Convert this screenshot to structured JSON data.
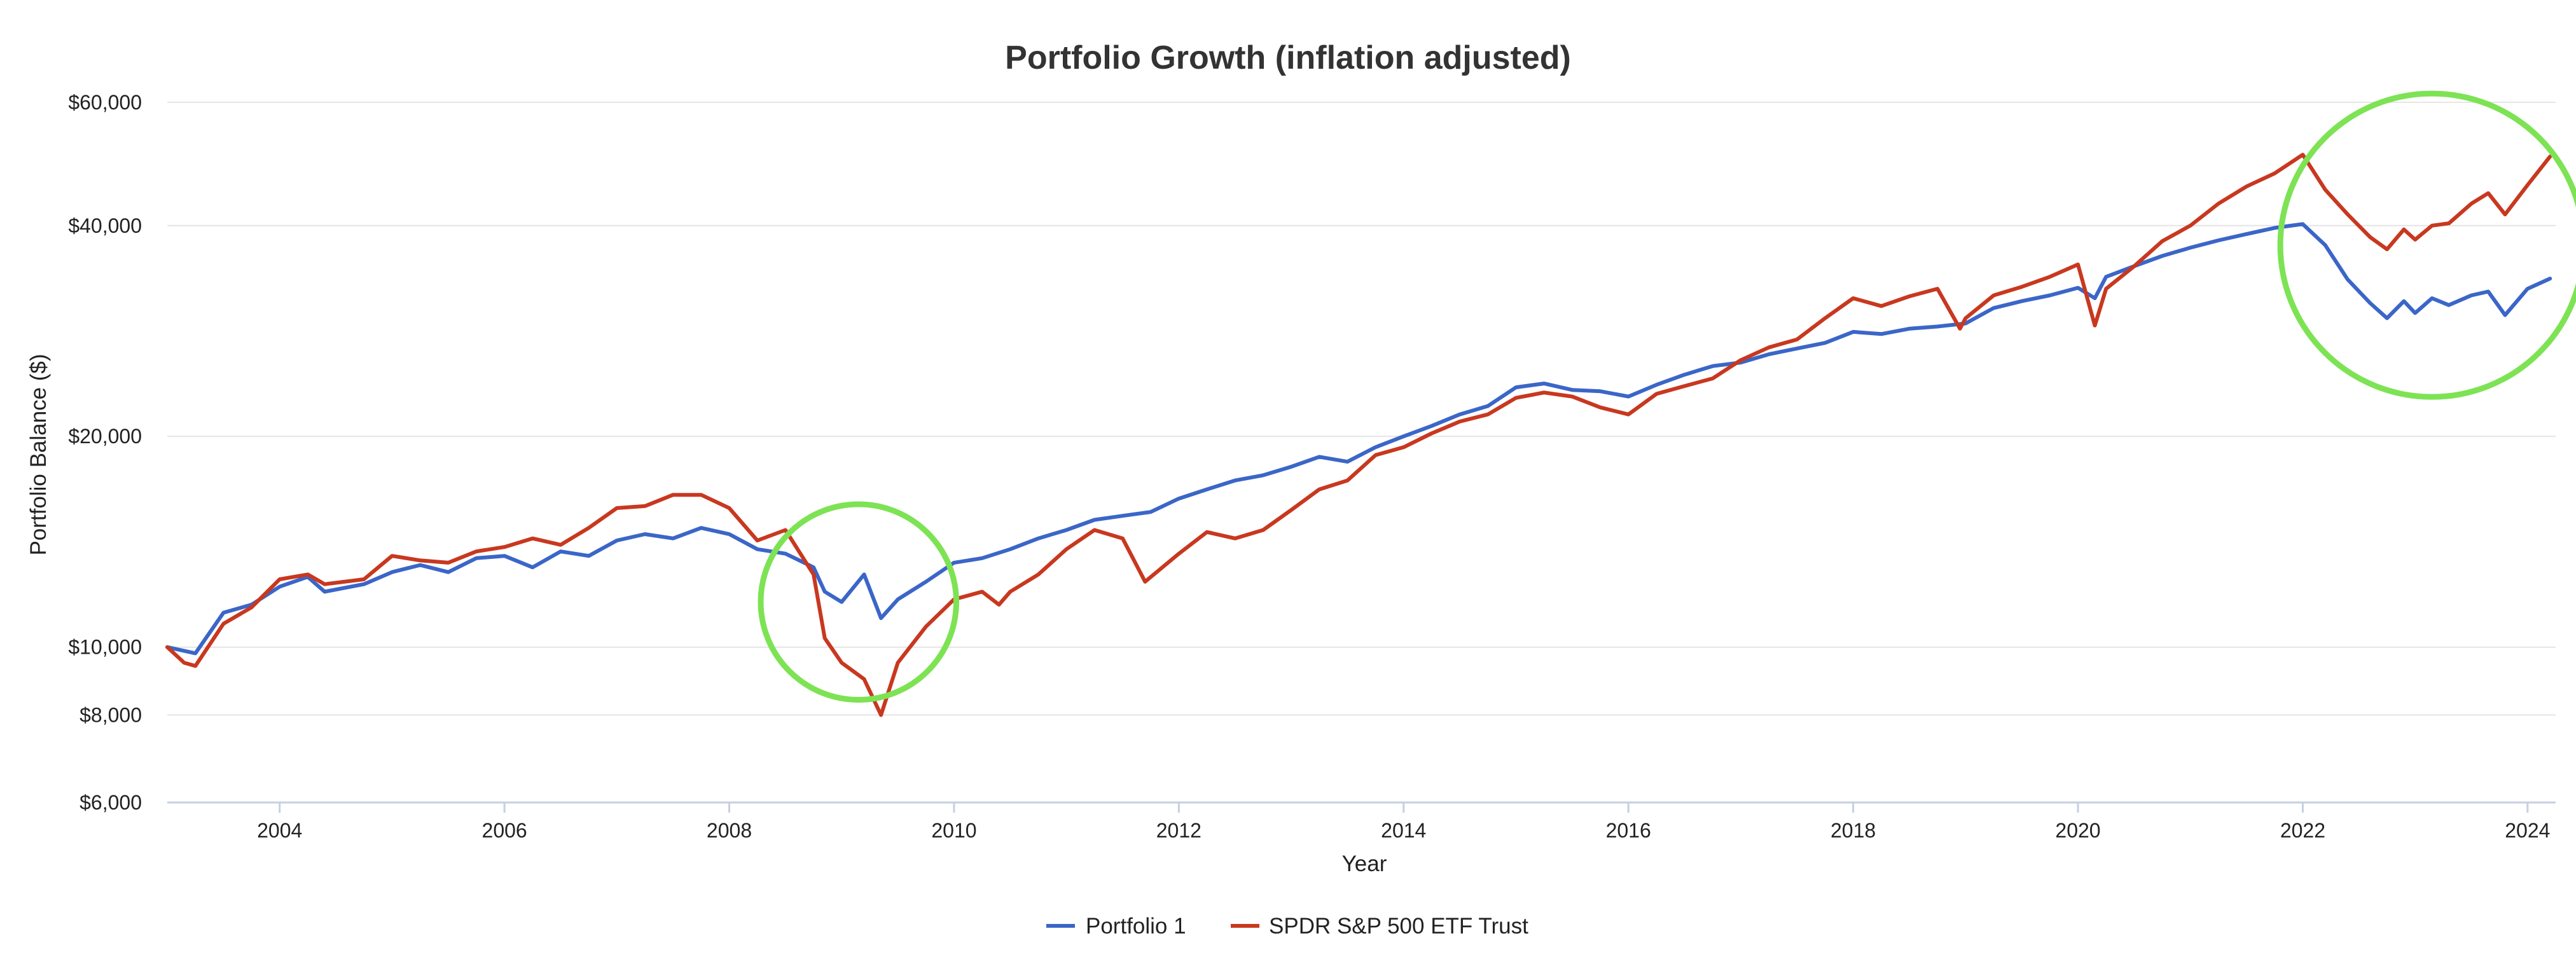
{
  "chart_data": {
    "type": "line",
    "title": "Portfolio Growth (inflation adjusted)",
    "xlabel": "Year",
    "ylabel": "Portfolio Balance ($)",
    "y_scale": "log",
    "ylim": [
      6000,
      64000
    ],
    "xlim": [
      2003.0,
      2024.25
    ],
    "y_ticks": [
      {
        "value": 6000,
        "label": "$6,000"
      },
      {
        "value": 8000,
        "label": "$8,000"
      },
      {
        "value": 10000,
        "label": "$10,000"
      },
      {
        "value": 20000,
        "label": "$20,000"
      },
      {
        "value": 40000,
        "label": "$40,000"
      },
      {
        "value": 60000,
        "label": "$60,000"
      }
    ],
    "x_ticks": [
      {
        "value": 2004,
        "label": "2004"
      },
      {
        "value": 2006,
        "label": "2006"
      },
      {
        "value": 2008,
        "label": "2008"
      },
      {
        "value": 2010,
        "label": "2010"
      },
      {
        "value": 2012,
        "label": "2012"
      },
      {
        "value": 2014,
        "label": "2014"
      },
      {
        "value": 2016,
        "label": "2016"
      },
      {
        "value": 2018,
        "label": "2018"
      },
      {
        "value": 2020,
        "label": "2020"
      },
      {
        "value": 2022,
        "label": "2022"
      },
      {
        "value": 2024,
        "label": "2024"
      }
    ],
    "grid": true,
    "legend_position": "bottom-center",
    "series": [
      {
        "name": "Portfolio 1",
        "color": "#3b66c8",
        "points": [
          [
            2003.0,
            10000
          ],
          [
            2003.25,
            9800
          ],
          [
            2003.5,
            11200
          ],
          [
            2003.75,
            11500
          ],
          [
            2004.0,
            12200
          ],
          [
            2004.25,
            12600
          ],
          [
            2004.4,
            12000
          ],
          [
            2004.75,
            12300
          ],
          [
            2005.0,
            12800
          ],
          [
            2005.25,
            13100
          ],
          [
            2005.5,
            12800
          ],
          [
            2005.75,
            13400
          ],
          [
            2006.0,
            13500
          ],
          [
            2006.25,
            13000
          ],
          [
            2006.5,
            13700
          ],
          [
            2006.75,
            13500
          ],
          [
            2007.0,
            14200
          ],
          [
            2007.25,
            14500
          ],
          [
            2007.5,
            14300
          ],
          [
            2007.75,
            14800
          ],
          [
            2008.0,
            14500
          ],
          [
            2008.25,
            13800
          ],
          [
            2008.5,
            13600
          ],
          [
            2008.75,
            13000
          ],
          [
            2008.85,
            12000
          ],
          [
            2009.0,
            11600
          ],
          [
            2009.2,
            12700
          ],
          [
            2009.35,
            11000
          ],
          [
            2009.5,
            11700
          ],
          [
            2009.75,
            12400
          ],
          [
            2010.0,
            13200
          ],
          [
            2010.25,
            13400
          ],
          [
            2010.5,
            13800
          ],
          [
            2010.75,
            14300
          ],
          [
            2011.0,
            14700
          ],
          [
            2011.25,
            15200
          ],
          [
            2011.5,
            15400
          ],
          [
            2011.75,
            15600
          ],
          [
            2012.0,
            16300
          ],
          [
            2012.25,
            16800
          ],
          [
            2012.5,
            17300
          ],
          [
            2012.75,
            17600
          ],
          [
            2013.0,
            18100
          ],
          [
            2013.25,
            18700
          ],
          [
            2013.5,
            18400
          ],
          [
            2013.75,
            19300
          ],
          [
            2014.0,
            20000
          ],
          [
            2014.25,
            20700
          ],
          [
            2014.5,
            21500
          ],
          [
            2014.75,
            22100
          ],
          [
            2015.0,
            23500
          ],
          [
            2015.25,
            23800
          ],
          [
            2015.5,
            23300
          ],
          [
            2015.75,
            23200
          ],
          [
            2016.0,
            22800
          ],
          [
            2016.25,
            23700
          ],
          [
            2016.5,
            24500
          ],
          [
            2016.75,
            25200
          ],
          [
            2017.0,
            25500
          ],
          [
            2017.25,
            26200
          ],
          [
            2017.5,
            26700
          ],
          [
            2017.75,
            27200
          ],
          [
            2018.0,
            28200
          ],
          [
            2018.25,
            28000
          ],
          [
            2018.5,
            28500
          ],
          [
            2018.75,
            28700
          ],
          [
            2019.0,
            29000
          ],
          [
            2019.25,
            30500
          ],
          [
            2019.5,
            31200
          ],
          [
            2019.75,
            31800
          ],
          [
            2020.0,
            32600
          ],
          [
            2020.15,
            31500
          ],
          [
            2020.25,
            33800
          ],
          [
            2020.5,
            35000
          ],
          [
            2020.75,
            36200
          ],
          [
            2021.0,
            37200
          ],
          [
            2021.25,
            38100
          ],
          [
            2021.5,
            38900
          ],
          [
            2021.75,
            39700
          ],
          [
            2022.0,
            40200
          ],
          [
            2022.2,
            37500
          ],
          [
            2022.4,
            33500
          ],
          [
            2022.6,
            31000
          ],
          [
            2022.75,
            29500
          ],
          [
            2022.9,
            31200
          ],
          [
            2023.0,
            30000
          ],
          [
            2023.15,
            31500
          ],
          [
            2023.3,
            30800
          ],
          [
            2023.5,
            31800
          ],
          [
            2023.65,
            32200
          ],
          [
            2023.8,
            29800
          ],
          [
            2024.0,
            32500
          ],
          [
            2024.2,
            33600
          ]
        ]
      },
      {
        "name": "SPDR S&P 500 ETF Trust",
        "color": "#c8381f",
        "points": [
          [
            2003.0,
            10000
          ],
          [
            2003.15,
            9500
          ],
          [
            2003.25,
            9400
          ],
          [
            2003.5,
            10800
          ],
          [
            2003.75,
            11400
          ],
          [
            2004.0,
            12500
          ],
          [
            2004.25,
            12700
          ],
          [
            2004.4,
            12300
          ],
          [
            2004.75,
            12500
          ],
          [
            2005.0,
            13500
          ],
          [
            2005.25,
            13300
          ],
          [
            2005.5,
            13200
          ],
          [
            2005.75,
            13700
          ],
          [
            2006.0,
            13900
          ],
          [
            2006.25,
            14300
          ],
          [
            2006.5,
            14000
          ],
          [
            2006.75,
            14800
          ],
          [
            2007.0,
            15800
          ],
          [
            2007.25,
            15900
          ],
          [
            2007.5,
            16500
          ],
          [
            2007.75,
            16500
          ],
          [
            2008.0,
            15800
          ],
          [
            2008.25,
            14200
          ],
          [
            2008.5,
            14700
          ],
          [
            2008.75,
            12700
          ],
          [
            2008.85,
            10300
          ],
          [
            2009.0,
            9500
          ],
          [
            2009.2,
            9000
          ],
          [
            2009.35,
            8000
          ],
          [
            2009.5,
            9500
          ],
          [
            2009.75,
            10700
          ],
          [
            2010.0,
            11700
          ],
          [
            2010.25,
            12000
          ],
          [
            2010.4,
            11500
          ],
          [
            2010.5,
            12000
          ],
          [
            2010.75,
            12700
          ],
          [
            2011.0,
            13800
          ],
          [
            2011.25,
            14700
          ],
          [
            2011.5,
            14300
          ],
          [
            2011.7,
            12400
          ],
          [
            2012.0,
            13600
          ],
          [
            2012.25,
            14600
          ],
          [
            2012.5,
            14300
          ],
          [
            2012.75,
            14700
          ],
          [
            2013.0,
            15700
          ],
          [
            2013.25,
            16800
          ],
          [
            2013.5,
            17300
          ],
          [
            2013.75,
            18800
          ],
          [
            2014.0,
            19300
          ],
          [
            2014.25,
            20200
          ],
          [
            2014.5,
            21000
          ],
          [
            2014.75,
            21500
          ],
          [
            2015.0,
            22700
          ],
          [
            2015.25,
            23100
          ],
          [
            2015.5,
            22800
          ],
          [
            2015.75,
            22000
          ],
          [
            2016.0,
            21500
          ],
          [
            2016.25,
            23000
          ],
          [
            2016.5,
            23600
          ],
          [
            2016.75,
            24200
          ],
          [
            2017.0,
            25700
          ],
          [
            2017.25,
            26800
          ],
          [
            2017.5,
            27500
          ],
          [
            2017.75,
            29500
          ],
          [
            2018.0,
            31500
          ],
          [
            2018.25,
            30700
          ],
          [
            2018.5,
            31700
          ],
          [
            2018.75,
            32500
          ],
          [
            2018.95,
            28500
          ],
          [
            2019.0,
            29500
          ],
          [
            2019.25,
            31800
          ],
          [
            2019.5,
            32700
          ],
          [
            2019.75,
            33800
          ],
          [
            2020.0,
            35200
          ],
          [
            2020.15,
            28800
          ],
          [
            2020.25,
            32500
          ],
          [
            2020.5,
            35000
          ],
          [
            2020.75,
            38000
          ],
          [
            2021.0,
            40000
          ],
          [
            2021.25,
            43000
          ],
          [
            2021.5,
            45500
          ],
          [
            2021.75,
            47500
          ],
          [
            2022.0,
            50500
          ],
          [
            2022.2,
            45000
          ],
          [
            2022.4,
            41500
          ],
          [
            2022.6,
            38500
          ],
          [
            2022.75,
            37000
          ],
          [
            2022.9,
            39500
          ],
          [
            2023.0,
            38200
          ],
          [
            2023.15,
            40000
          ],
          [
            2023.3,
            40300
          ],
          [
            2023.5,
            43000
          ],
          [
            2023.65,
            44500
          ],
          [
            2023.8,
            41500
          ],
          [
            2024.0,
            45700
          ],
          [
            2024.2,
            50200
          ]
        ]
      }
    ],
    "annotations": [
      {
        "type": "circle",
        "color": "#7de354",
        "center_x": 2009.15,
        "center_y": 11600,
        "radius_years": 0.87
      },
      {
        "type": "circle",
        "color": "#7de354",
        "center_x": 2023.15,
        "center_y": 37500,
        "radius_years": 1.35
      }
    ]
  }
}
